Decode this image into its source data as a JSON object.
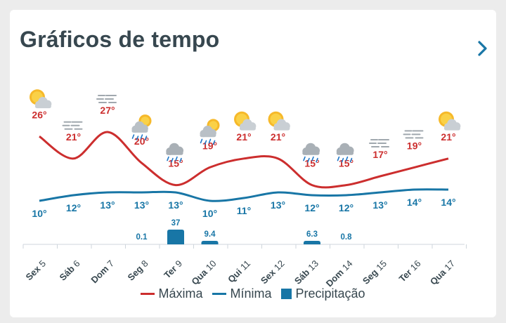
{
  "header": {
    "title": "Gráficos de tempo"
  },
  "colors": {
    "max": "#cc2e2e",
    "min": "#1876a6",
    "precip": "#1876a6",
    "title": "#37474f",
    "axis": "#37474f"
  },
  "chart_data": {
    "type": "line",
    "categories": [
      "Sex 5",
      "Sáb 6",
      "Dom 7",
      "Seg 8",
      "Ter 9",
      "Qua 10",
      "Qui 11",
      "Sex 12",
      "Sáb 13",
      "Dom 14",
      "Seg 15",
      "Ter 16",
      "Qua 17"
    ],
    "series": [
      {
        "name": "Máxima",
        "type": "line",
        "values": [
          26,
          21,
          27,
          20,
          15,
          19,
          21,
          21,
          15,
          15,
          17,
          19,
          21
        ],
        "labels": [
          "26°",
          "21°",
          "27°",
          "20°",
          "15°",
          "19°",
          "21°",
          "21°",
          "15°",
          "15°",
          "17°",
          "19°",
          "21°"
        ]
      },
      {
        "name": "Mínima",
        "type": "line",
        "values": [
          10,
          12,
          13,
          13,
          13,
          10,
          11,
          13,
          12,
          12,
          13,
          14,
          14
        ],
        "labels": [
          "10°",
          "12°",
          "13°",
          "13°",
          "13°",
          "10°",
          "11°",
          "13°",
          "12°",
          "12°",
          "13°",
          "14°",
          "14°"
        ]
      },
      {
        "name": "Precipitação",
        "type": "bar",
        "values": [
          null,
          null,
          null,
          0.1,
          37,
          9.4,
          null,
          null,
          6.3,
          0.8,
          null,
          null,
          null
        ],
        "labels": [
          "",
          "",
          "",
          "0.1",
          "37",
          "9.4",
          "",
          "",
          "6.3",
          "0.8",
          "",
          "",
          ""
        ]
      }
    ],
    "icons": [
      "sun-cloud-icon",
      "fog-icon",
      "fog-icon",
      "sun-cloud-rain-icon",
      "cloud-rain-icon",
      "sun-cloud-rain-icon",
      "sun-cloud-icon",
      "sun-cloud-icon",
      "cloud-rain-icon",
      "cloud-rain-icon",
      "fog-icon",
      "fog-icon",
      "sun-cloud-icon"
    ],
    "grid": false,
    "legend_position": "bottom"
  }
}
